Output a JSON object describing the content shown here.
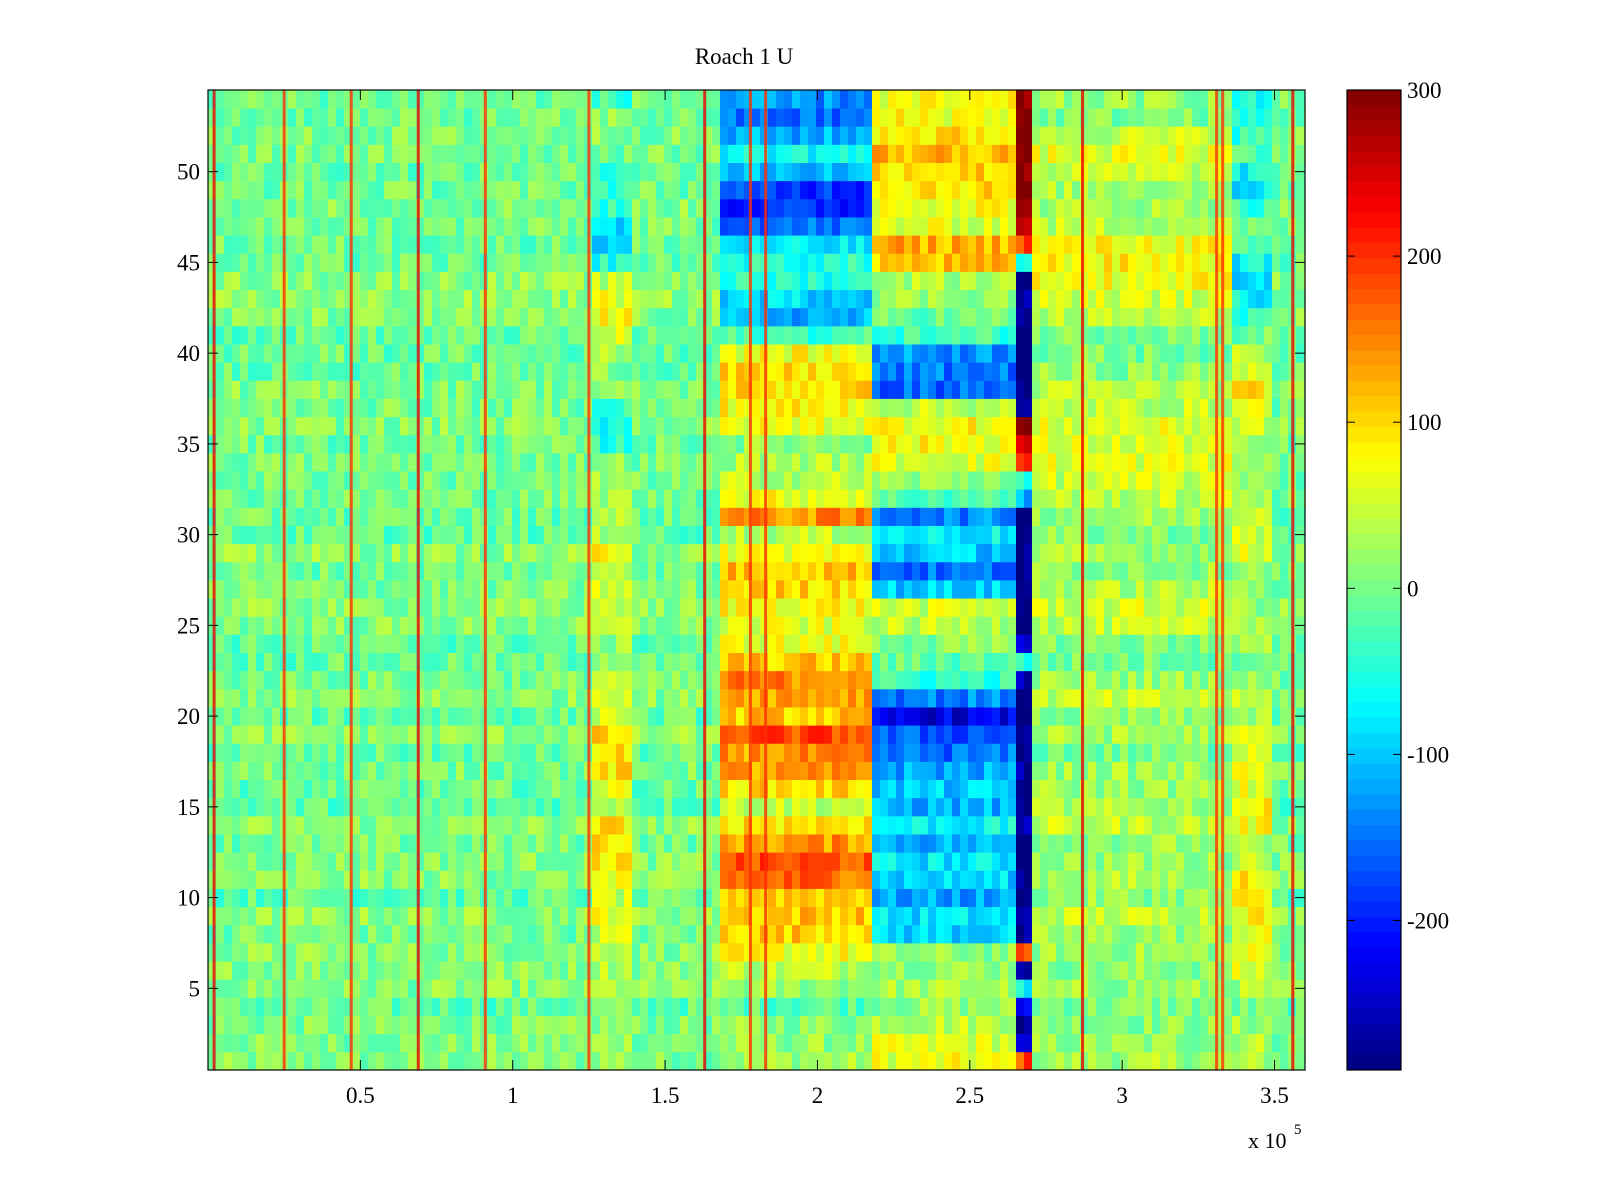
{
  "figure": {
    "background": "#ffffff"
  },
  "chart_data": {
    "type": "heatmap",
    "title": "Roach 1 U",
    "xlabel": "",
    "ylabel": "",
    "x_multiplier_label": "x 10",
    "x_multiplier_exponent": "5",
    "xlim": [
      0,
      3.6
    ],
    "ylim": [
      0.5,
      54.5
    ],
    "rows": 54,
    "x_ticks": [
      0.5,
      1,
      1.5,
      2,
      2.5,
      3,
      3.5
    ],
    "x_tick_labels": [
      "0.5",
      "1",
      "1.5",
      "2",
      "2.5",
      "3",
      "3.5"
    ],
    "y_ticks": [
      5,
      10,
      15,
      20,
      25,
      30,
      35,
      40,
      45,
      50
    ],
    "y_tick_labels": [
      "5",
      "10",
      "15",
      "20",
      "25",
      "30",
      "35",
      "40",
      "45",
      "50"
    ],
    "colorbar": {
      "colormap": "jet",
      "clim": [
        -290,
        300
      ],
      "ticks": [
        300,
        200,
        100,
        0,
        -100,
        -200
      ],
      "tick_labels": [
        "300",
        "200",
        "100",
        "0",
        "-100",
        "-200"
      ]
    },
    "background_value": 0,
    "spikes_x": [
      0.02,
      0.25,
      0.47,
      0.69,
      0.91,
      1.25,
      1.63,
      1.78,
      1.83,
      2.87,
      3.31,
      3.33,
      3.56
    ],
    "block_columns": [
      {
        "name": "segment-A",
        "x_range": [
          1.26,
          1.4
        ],
        "row_values": [
          20,
          20,
          10,
          10,
          25,
          25,
          40,
          50,
          60,
          60,
          70,
          90,
          100,
          80,
          60,
          70,
          90,
          100,
          80,
          70,
          60,
          50,
          40,
          30,
          30,
          40,
          50,
          60,
          70,
          50,
          40,
          30,
          20,
          10,
          -40,
          -60,
          -30,
          0,
          20,
          40,
          60,
          70,
          50,
          20,
          -40,
          -90,
          -80,
          -50,
          -30,
          -20,
          0,
          10,
          20,
          -30
        ]
      },
      {
        "name": "segment-B",
        "x_range": [
          1.68,
          2.17
        ],
        "row_values": [
          20,
          10,
          10,
          0,
          10,
          30,
          60,
          110,
          100,
          130,
          160,
          170,
          140,
          90,
          60,
          110,
          130,
          150,
          170,
          120,
          130,
          150,
          120,
          80,
          50,
          70,
          100,
          120,
          60,
          50,
          150,
          70,
          40,
          30,
          20,
          60,
          80,
          90,
          100,
          80,
          -20,
          -120,
          -100,
          -60,
          -40,
          -80,
          -150,
          -200,
          -180,
          -100,
          -60,
          -120,
          -150,
          -130
        ]
      },
      {
        "name": "segment-C",
        "x_range": [
          2.19,
          2.66
        ],
        "row_values": [
          60,
          50,
          40,
          30,
          20,
          10,
          0,
          -90,
          -100,
          -110,
          -100,
          -90,
          -110,
          -80,
          -100,
          -90,
          -120,
          -140,
          -180,
          -220,
          -150,
          -40,
          0,
          20,
          30,
          40,
          -100,
          -150,
          -110,
          -60,
          -130,
          -20,
          20,
          60,
          80,
          70,
          40,
          -160,
          -140,
          -120,
          -20,
          -10,
          10,
          20,
          120,
          130,
          60,
          70,
          100,
          110,
          120,
          90,
          80,
          70
        ]
      },
      {
        "name": "segment-D",
        "x_range": [
          2.66,
          2.71
        ],
        "row_values": [
          180,
          -260,
          -280,
          -200,
          -80,
          -260,
          150,
          -290,
          -290,
          -290,
          -290,
          -290,
          -290,
          -260,
          -280,
          -280,
          -280,
          -280,
          -290,
          -290,
          -290,
          -260,
          -40,
          -200,
          -290,
          -290,
          -290,
          -290,
          -290,
          -290,
          -290,
          -120,
          -60,
          200,
          250,
          280,
          -290,
          -290,
          -290,
          -290,
          -290,
          -290,
          -290,
          -290,
          -30,
          200,
          280,
          280,
          300,
          300,
          300,
          300,
          300,
          300
        ]
      },
      {
        "name": "segment-E",
        "x_range": [
          2.71,
          3.36
        ],
        "row_values": [
          20,
          10,
          10,
          20,
          10,
          0,
          10,
          20,
          30,
          30,
          20,
          10,
          20,
          30,
          40,
          30,
          20,
          10,
          10,
          20,
          30,
          20,
          10,
          20,
          30,
          40,
          30,
          20,
          10,
          20,
          30,
          40,
          50,
          60,
          60,
          50,
          40,
          30,
          20,
          10,
          20,
          30,
          40,
          60,
          90,
          80,
          40,
          20,
          30,
          50,
          60,
          40,
          10,
          20
        ]
      },
      {
        "name": "segment-F",
        "x_range": [
          3.36,
          3.48
        ],
        "row_values": [
          20,
          30,
          20,
          10,
          20,
          40,
          50,
          60,
          70,
          90,
          80,
          40,
          20,
          60,
          90,
          70,
          60,
          80,
          40,
          30,
          20,
          10,
          20,
          30,
          40,
          10,
          20,
          30,
          40,
          60,
          70,
          40,
          30,
          20,
          10,
          40,
          60,
          80,
          70,
          40,
          10,
          -40,
          -80,
          -90,
          -60,
          -30,
          -10,
          -40,
          -80,
          -60,
          -30,
          -40,
          -50,
          -60
        ]
      }
    ]
  }
}
